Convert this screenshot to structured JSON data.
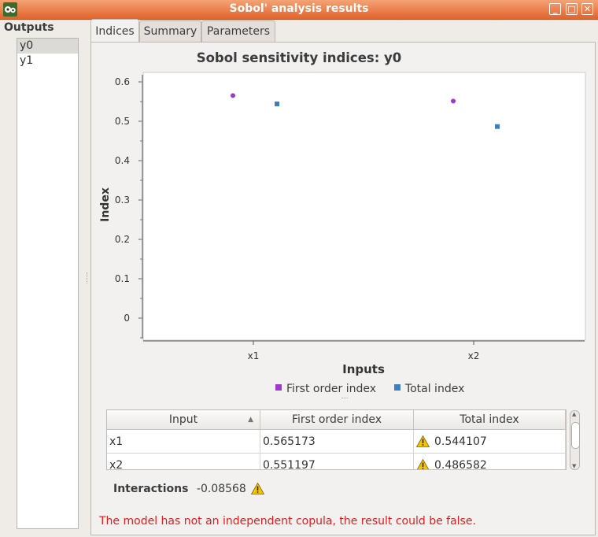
{
  "window": {
    "title": "Sobol' analysis results",
    "buttons": [
      "_",
      "□",
      "✕"
    ]
  },
  "outputs": {
    "title": "Outputs",
    "items": [
      "y0",
      "y1"
    ],
    "selected": "y0"
  },
  "tabs": [
    {
      "label": "Indices",
      "active": true
    },
    {
      "label": "Summary",
      "active": false
    },
    {
      "label": "Parameters",
      "active": false
    }
  ],
  "chart_data": {
    "type": "scatter",
    "title": "Sobol sensitivity indices: y0",
    "xlabel": "Inputs",
    "ylabel": "Index",
    "categories": [
      "x1",
      "x2"
    ],
    "ylim": [
      -0.05,
      0.62
    ],
    "yticks": [
      "0.6",
      "0.5",
      "0.4",
      "0.3",
      "0.2",
      "0.1",
      "0"
    ],
    "ytick_values": [
      0.6,
      0.5,
      0.4,
      0.3,
      0.2,
      0.1,
      0
    ],
    "series": [
      {
        "name": "First order index",
        "color": "#a037d2",
        "marker": "circle",
        "values": [
          0.565173,
          0.551197
        ]
      },
      {
        "name": "Total index",
        "color": "#3d7fc1",
        "marker": "square",
        "values": [
          0.544107,
          0.486582
        ]
      }
    ],
    "grid": false,
    "legend_position": "bottom"
  },
  "table": {
    "headers": [
      "Input",
      "First order index",
      "Total index"
    ],
    "rows": [
      {
        "input": "x1",
        "first": "0.565173",
        "total": "0.544107",
        "warn": true
      },
      {
        "input": "x2",
        "first": "0.551197",
        "total": "0.486582",
        "warn": true
      }
    ]
  },
  "interactions": {
    "label": "Interactions",
    "value": "-0.08568"
  },
  "message": "The model has not an independent copula, the result could be false.",
  "colors": {
    "titlebar": "#e8703a",
    "warning_text": "#e21c1c"
  }
}
